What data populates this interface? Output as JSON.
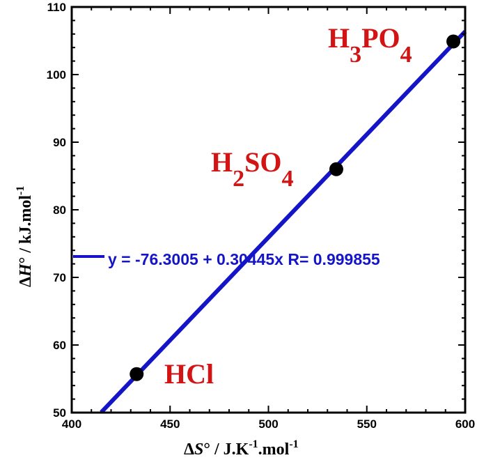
{
  "chart_data": {
    "type": "scatter",
    "xlim": [
      400,
      600
    ],
    "ylim": [
      50,
      110
    ],
    "x_ticks": [
      "400",
      "450",
      "500",
      "550",
      "600"
    ],
    "y_ticks": [
      "50",
      "60",
      "70",
      "80",
      "90",
      "100",
      "110"
    ],
    "xlabel": {
      "delta": "Δ",
      "symbol": "S",
      "rest": "° / J.K",
      "exp1": "-1",
      "mid": ".mol",
      "exp2": "-1"
    },
    "ylabel": {
      "delta": "Δ",
      "symbol": "H",
      "rest": "° / kJ.mol",
      "exp": "-1"
    },
    "points": [
      {
        "x": 433,
        "y": 55.7,
        "label": {
          "main": "HCl"
        }
      },
      {
        "x": 534.5,
        "y": 86.0,
        "label": {
          "a": "H",
          "s1": "2",
          "b": "SO",
          "s2": "4"
        }
      },
      {
        "x": 594,
        "y": 104.9,
        "label": {
          "a": "H",
          "s1": "3",
          "b": "PO",
          "s2": "4"
        }
      }
    ],
    "fit": {
      "intercept": -76.3005,
      "slope": 0.30445,
      "x_range": [
        415,
        600
      ],
      "legend_text": "y = -76.3005 + 0.30445x   R= 0.999855"
    },
    "colors": {
      "line": "#1515c8",
      "points": "#000000",
      "labels": "#d21414",
      "axes": "#000000"
    }
  }
}
